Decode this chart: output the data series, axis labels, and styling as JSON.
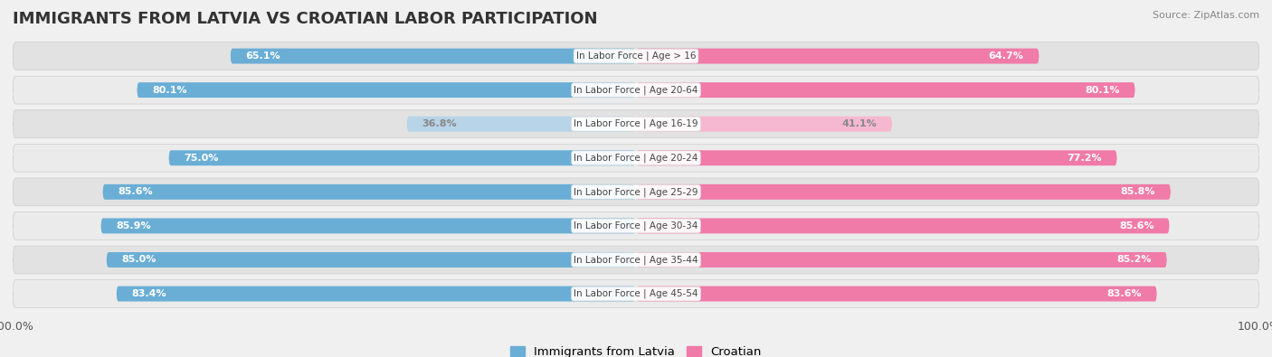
{
  "title": "IMMIGRANTS FROM LATVIA VS CROATIAN LABOR PARTICIPATION",
  "source": "Source: ZipAtlas.com",
  "categories": [
    "In Labor Force | Age > 16",
    "In Labor Force | Age 20-64",
    "In Labor Force | Age 16-19",
    "In Labor Force | Age 20-24",
    "In Labor Force | Age 25-29",
    "In Labor Force | Age 30-34",
    "In Labor Force | Age 35-44",
    "In Labor Force | Age 45-54"
  ],
  "latvia_values": [
    65.1,
    80.1,
    36.8,
    75.0,
    85.6,
    85.9,
    85.0,
    83.4
  ],
  "croatian_values": [
    64.7,
    80.1,
    41.1,
    77.2,
    85.8,
    85.6,
    85.2,
    83.6
  ],
  "latvia_color": "#6aaed6",
  "latvia_color_light": "#b8d4e8",
  "croatian_color": "#f07aa8",
  "croatian_color_light": "#f5b8d0",
  "max_value": 100.0,
  "bg_color": "#f0f0f0",
  "row_bg_even": "#e2e2e2",
  "row_bg_odd": "#ebebeb",
  "title_fontsize": 13,
  "label_fontsize": 8.0,
  "cat_fontsize": 7.5,
  "tick_fontsize": 9,
  "legend_fontsize": 9.5,
  "light_rows": [
    2
  ]
}
